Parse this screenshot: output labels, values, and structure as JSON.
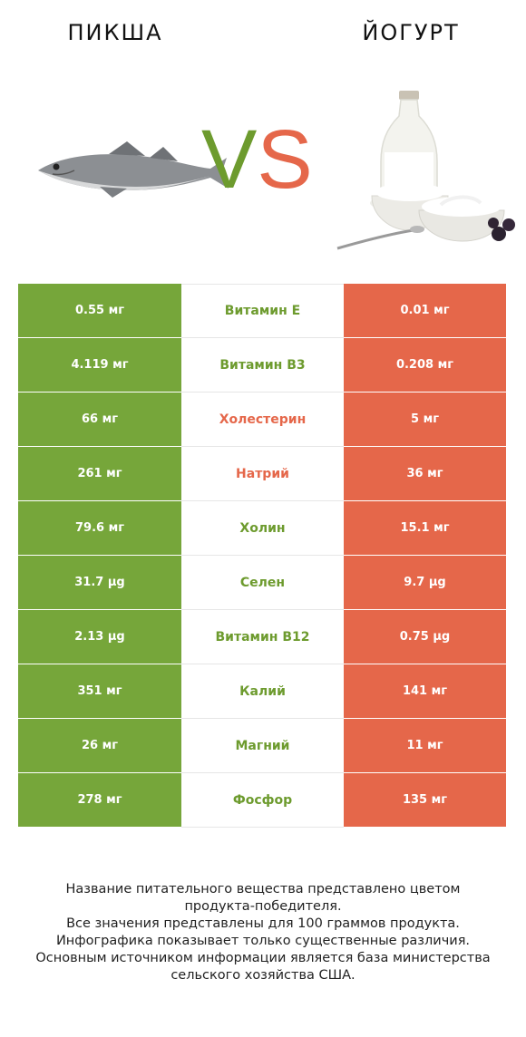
{
  "header": {
    "left_title": "ПИКША",
    "right_title": "ЙОГУРТ",
    "vs_v": "V",
    "vs_s": "S"
  },
  "colors": {
    "left_winner": "#76a63a",
    "right_winner": "#e5674a"
  },
  "rows": [
    {
      "left": "0.55 мг",
      "name": "Витамин E",
      "right": "0.01 мг",
      "winner": "left"
    },
    {
      "left": "4.119 мг",
      "name": "Витамин B3",
      "right": "0.208 мг",
      "winner": "left"
    },
    {
      "left": "66 мг",
      "name": "Холестерин",
      "right": "5 мг",
      "winner": "right"
    },
    {
      "left": "261 мг",
      "name": "Натрий",
      "right": "36 мг",
      "winner": "right"
    },
    {
      "left": "79.6 мг",
      "name": "Холин",
      "right": "15.1 мг",
      "winner": "left"
    },
    {
      "left": "31.7 µg",
      "name": "Селен",
      "right": "9.7 µg",
      "winner": "left"
    },
    {
      "left": "2.13 µg",
      "name": "Витамин B12",
      "right": "0.75 µg",
      "winner": "left"
    },
    {
      "left": "351 мг",
      "name": "Калий",
      "right": "141 мг",
      "winner": "left"
    },
    {
      "left": "26 мг",
      "name": "Магний",
      "right": "11 мг",
      "winner": "left"
    },
    {
      "left": "278 мг",
      "name": "Фосфор",
      "right": "135 мг",
      "winner": "left"
    }
  ],
  "footer": {
    "lines": [
      "Название питательного вещества представлено цветом",
      "продукта-победителя.",
      "Все значения представлены для 100 граммов продукта.",
      "Инфографика показывает только существенные различия.",
      "Основным источником информации является база министерства",
      "сельского хозяйства США."
    ]
  }
}
